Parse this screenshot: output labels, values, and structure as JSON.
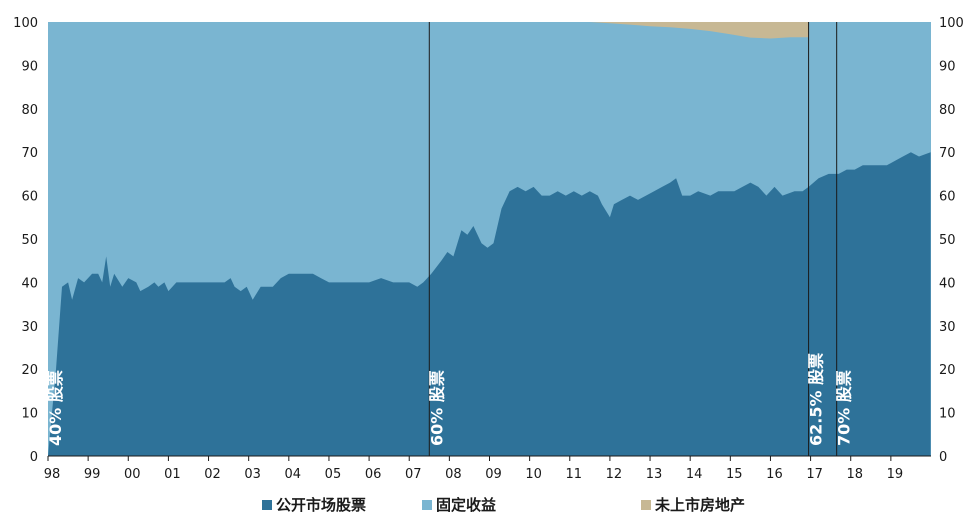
{
  "chart_data": {
    "type": "area",
    "stacked": true,
    "ylim": [
      0,
      100
    ],
    "xlim": [
      1998,
      2020
    ],
    "x_tick_labels": [
      "98",
      "99",
      "00",
      "01",
      "02",
      "03",
      "04",
      "05",
      "06",
      "07",
      "08",
      "09",
      "10",
      "11",
      "12",
      "13",
      "14",
      "15",
      "16",
      "17",
      "18",
      "19"
    ],
    "y_ticks": [
      0,
      10,
      20,
      30,
      40,
      50,
      60,
      70,
      80,
      90,
      100
    ],
    "y_tick_labels": [
      "0",
      "10",
      "20",
      "30",
      "40",
      "50",
      "60",
      "70",
      "80",
      "90",
      "100"
    ],
    "grid": false,
    "legend_position": "bottom",
    "series": [
      {
        "name": "公开市场股票",
        "color": "#2e7299",
        "x": [
          1998.0,
          1998.2,
          1998.35,
          1998.5,
          1998.6,
          1998.75,
          1998.9,
          1999.1,
          1999.25,
          1999.35,
          1999.45,
          1999.55,
          1999.65,
          1999.85,
          2000.0,
          2000.2,
          2000.3,
          2000.5,
          2000.65,
          2000.75,
          2000.9,
          2001.0,
          2001.2,
          2002.0,
          2002.2,
          2002.4,
          2002.55,
          2002.65,
          2002.8,
          2002.95,
          2003.1,
          2003.3,
          2003.6,
          2003.8,
          2004.0,
          2004.3,
          2004.6,
          2004.8,
          2005.0,
          2005.2,
          2005.5,
          2005.7,
          2006.0,
          2006.3,
          2006.6,
          2006.9,
          2007.0,
          2007.2,
          2007.35,
          2007.55,
          2007.8,
          2007.95,
          2008.1,
          2008.3,
          2008.45,
          2008.6,
          2008.8,
          2008.95,
          2009.1,
          2009.3,
          2009.5,
          2009.7,
          2009.9,
          2010.1,
          2010.3,
          2010.5,
          2010.7,
          2010.9,
          2011.1,
          2011.3,
          2011.5,
          2011.7,
          2011.8,
          2012.0,
          2012.1,
          2012.3,
          2012.5,
          2012.7,
          2012.9,
          2013.1,
          2013.3,
          2013.5,
          2013.65,
          2013.8,
          2014.0,
          2014.2,
          2014.5,
          2014.7,
          2014.9,
          2015.1,
          2015.3,
          2015.5,
          2015.7,
          2015.9,
          2016.1,
          2016.3,
          2016.6,
          2016.8,
          2016.95,
          2017.2,
          2017.45,
          2017.7,
          2017.9,
          2018.1,
          2018.3,
          2018.5,
          2018.7,
          2018.9,
          2019.1,
          2019.3,
          2019.5,
          2019.7,
          2019.99
        ],
        "values": [
          0,
          20,
          39,
          40,
          36,
          41,
          40,
          42,
          42,
          40,
          46,
          39,
          42,
          39,
          41,
          40,
          38,
          39,
          40,
          39,
          40,
          38,
          40,
          40,
          40,
          40,
          41,
          39,
          38,
          39,
          36,
          39,
          39,
          41,
          42,
          42,
          42,
          41,
          40,
          40,
          40,
          40,
          40,
          41,
          40,
          40,
          40,
          39,
          40,
          42,
          45,
          47,
          46,
          52,
          51,
          53,
          49,
          48,
          49,
          57,
          61,
          62,
          61,
          62,
          60,
          60,
          61,
          60,
          61,
          60,
          61,
          60,
          58,
          55,
          58,
          59,
          60,
          59,
          60,
          61,
          62,
          63,
          64,
          60,
          60,
          61,
          60,
          61,
          61,
          61,
          62,
          63,
          62,
          60,
          62,
          60,
          61,
          61,
          62,
          64,
          65,
          65,
          66,
          66,
          67,
          67,
          67,
          67,
          68,
          69,
          70,
          69,
          70
        ]
      },
      {
        "name": "固定收益",
        "color": "#7ab5d1",
        "values": "remainder to 100% (60% → 40% → 37.5% → 30% of portfolio)"
      },
      {
        "name": "未上市房地产",
        "color": "#c7b894",
        "x": [
          2011.5,
          2012.0,
          2012.5,
          2013.0,
          2013.5,
          2014.0,
          2014.5,
          2015.0,
          2015.5,
          2016.0,
          2016.5,
          2016.95
        ],
        "values": [
          0,
          0.3,
          0.6,
          1.0,
          1.2,
          1.6,
          2.1,
          2.8,
          3.6,
          3.8,
          3.5,
          3.5
        ]
      }
    ],
    "annotations": [
      {
        "x": 1998.0,
        "text": "40% 股票"
      },
      {
        "x": 2007.5,
        "text": "60% 股票"
      },
      {
        "x": 2016.95,
        "text": "62.5% 股票"
      },
      {
        "x": 2017.65,
        "text": "70% 股票"
      }
    ]
  }
}
